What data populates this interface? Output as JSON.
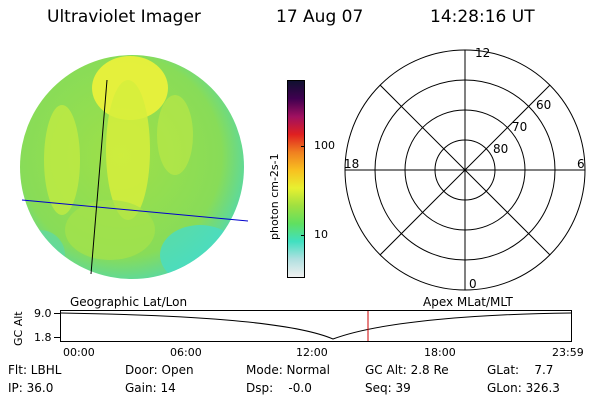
{
  "header": {
    "title": "Ultraviolet Imager",
    "date": "17 Aug 07",
    "time": "14:28:16 UT"
  },
  "colors": {
    "image_main": "#9de040",
    "image_yellow": "#f0f030",
    "image_cyan": "#40e0c0",
    "grid_line": "#000000",
    "geo_line": "#0000cc",
    "marker": "#cc0000"
  },
  "colorbar": {
    "unit_label": "photon cm-2s-1",
    "labels": [
      {
        "text": "100",
        "value": 100
      },
      {
        "text": "10",
        "value": 10
      }
    ],
    "colors": [
      "#f0f0f0",
      "#b0e0e0",
      "#40e0c0",
      "#60e060",
      "#a0e040",
      "#e8f030",
      "#f8c020",
      "#f08020",
      "#e02020",
      "#a01060",
      "#400050",
      "#101030"
    ]
  },
  "polar_plot": {
    "mlt_labels": {
      "top": "12",
      "left": "18",
      "right": "6",
      "bottom": "0"
    },
    "lat_labels": [
      "60",
      "70",
      "80"
    ]
  },
  "strip": {
    "left_caption": "Geographic Lat/Lon",
    "right_caption": "Apex MLat/MLT",
    "axis_title": "GC Alt",
    "y_max": "9.0",
    "y_min": "1.8",
    "x_ticks": [
      "00:00",
      "06:00",
      "12:00",
      "18:00",
      "23:59"
    ]
  },
  "status": {
    "flt": "Flt: LBHL",
    "door": "Door: Open",
    "mode": "Mode: Normal",
    "gc_alt": "GC Alt: 2.8 Re",
    "glat": "GLat:    7.7",
    "ip": "IP: 36.0",
    "gain": "Gain: 14",
    "dsp": "Dsp:    -0.0",
    "seq": "Seq: 39",
    "glon": "GLon: 326.3"
  }
}
